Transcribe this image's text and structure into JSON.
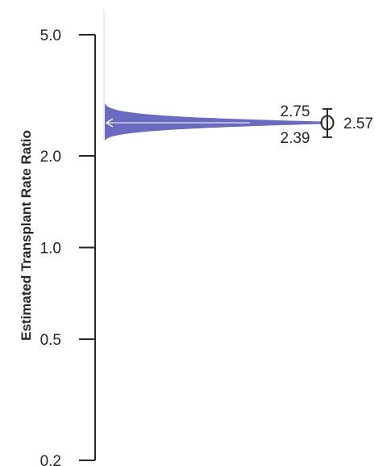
{
  "chart_data": {
    "type": "violin",
    "ylabel": "Estimated Transplant Rate Ratio",
    "yscale": "log",
    "ylim": [
      0.2,
      5.0
    ],
    "yticks": [
      {
        "value": 0.2,
        "label": "0.2"
      },
      {
        "value": 0.5,
        "label": "0.5"
      },
      {
        "value": 1.0,
        "label": "1.0"
      },
      {
        "value": 2.0,
        "label": "2.0"
      },
      {
        "value": 5.0,
        "label": "5.0"
      }
    ],
    "estimate": {
      "value": 2.57,
      "label": "2.57"
    },
    "interval": {
      "lower": 2.39,
      "upper": 2.75,
      "lower_label": "2.39",
      "upper_label": "2.75"
    },
    "distribution_range": [
      2.24,
      2.98
    ],
    "fill_color": "#6a6abf",
    "axis_color": "#262626"
  }
}
